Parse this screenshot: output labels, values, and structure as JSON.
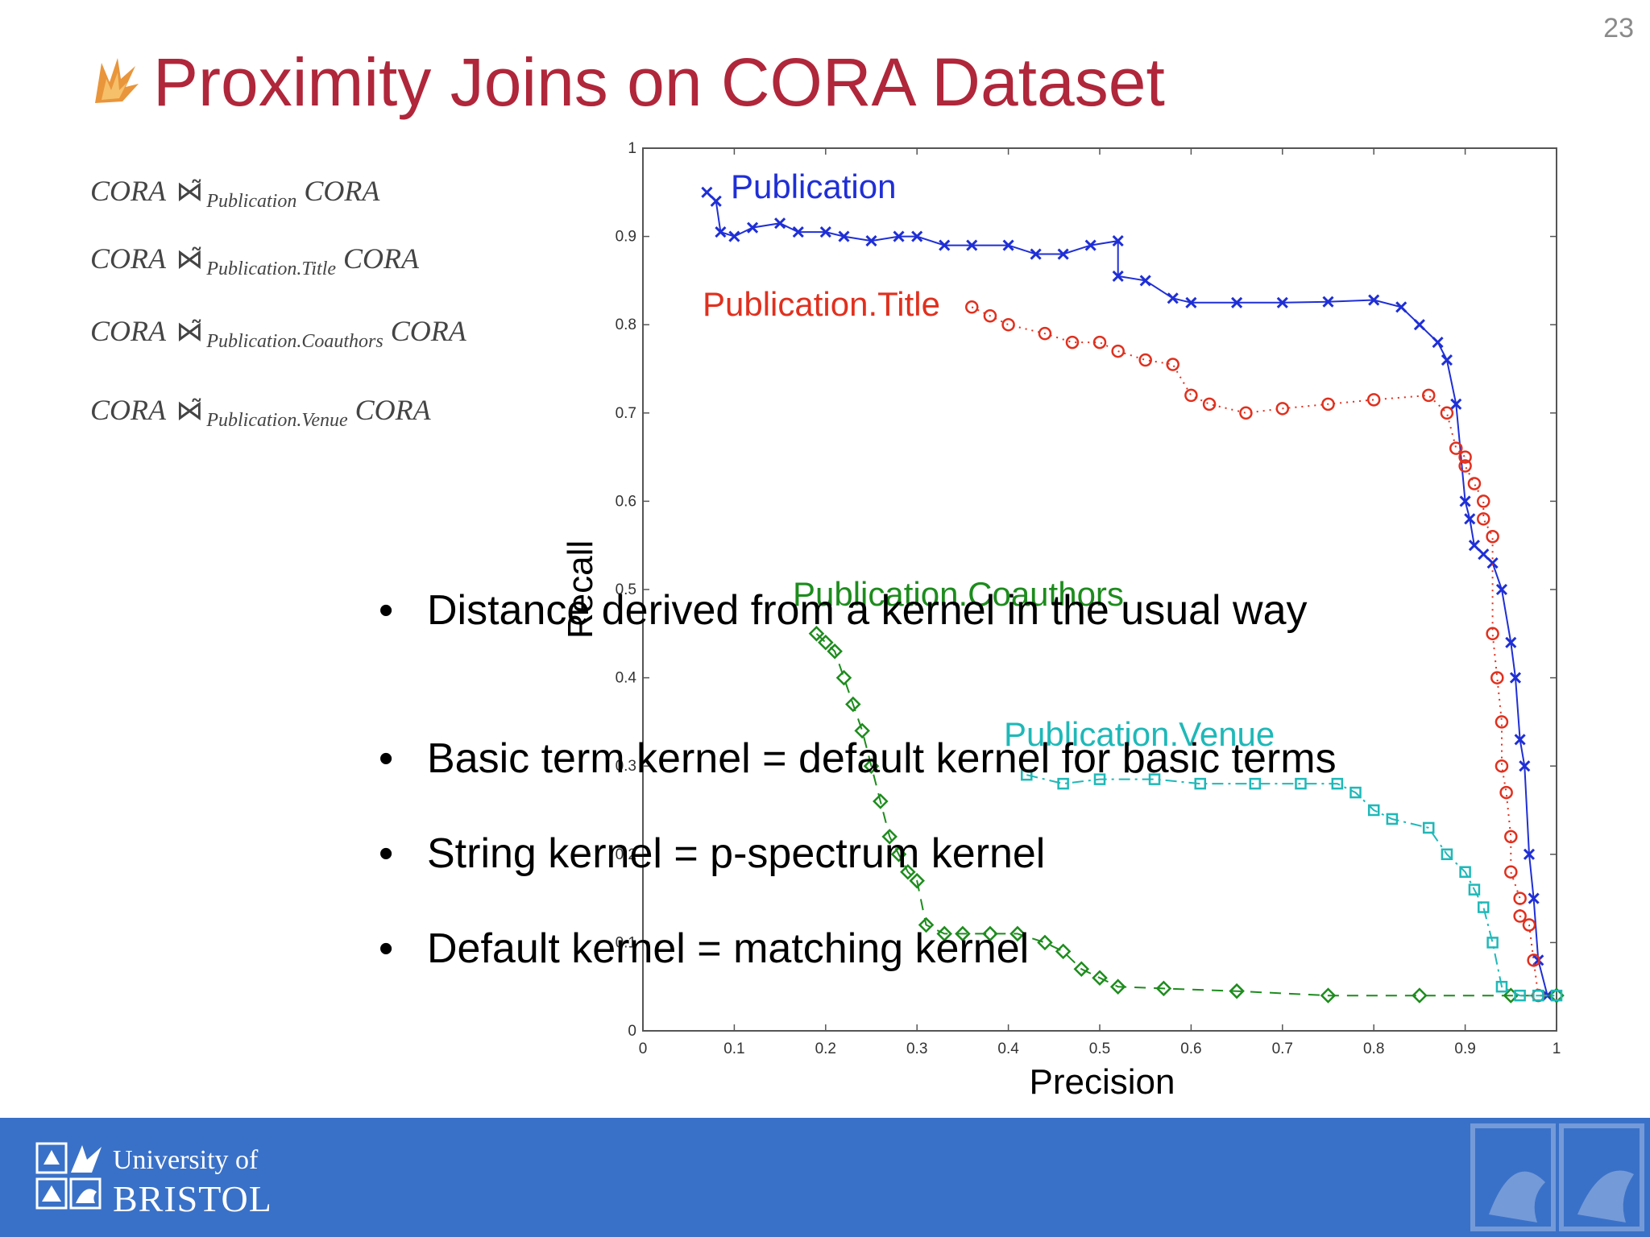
{
  "slide": {
    "page_number": "23",
    "title": "Proximity Joins on CORA Dataset",
    "icon": "flame-logo-icon",
    "accent_color": "#b0263a"
  },
  "formulas": [
    {
      "left": "CORA",
      "sub": "Publication",
      "right": "CORA"
    },
    {
      "left": "CORA",
      "sub": "Publication.Title",
      "right": "CORA"
    },
    {
      "left": "CORA",
      "sub": "Publication.Coauthors",
      "right": "CORA"
    },
    {
      "left": "CORA",
      "sub": "Publication.Venue",
      "right": "CORA"
    }
  ],
  "bullets": [
    "Distance derived from a kernel in the usual way",
    "Basic term kernel = default kernel for basic terms",
    "String kernel = p-spectrum kernel",
    "Default kernel = matching kernel"
  ],
  "footer": {
    "university_line1": "University of",
    "university_line2": "BRISTOL",
    "color": "#3a71c8"
  },
  "chart_data": {
    "type": "line",
    "xlabel": "Precision",
    "ylabel": "Recall",
    "xlim": [
      0,
      1
    ],
    "ylim": [
      0,
      1
    ],
    "x_ticks": [
      "0",
      "0.1",
      "0.2",
      "0.3",
      "0.4",
      "0.5",
      "0.6",
      "0.7",
      "0.8",
      "0.9",
      "1"
    ],
    "y_ticks": [
      "0",
      "0.1",
      "0.2",
      "0.3",
      "0.4",
      "0.5",
      "0.6",
      "0.7",
      "0.8",
      "0.9",
      "1"
    ],
    "series": [
      {
        "name": "Publication",
        "color": "#1f2fd6",
        "marker": "x",
        "line": "solid",
        "x": [
          0.07,
          0.08,
          0.085,
          0.1,
          0.12,
          0.15,
          0.17,
          0.2,
          0.22,
          0.25,
          0.28,
          0.3,
          0.33,
          0.36,
          0.4,
          0.43,
          0.46,
          0.49,
          0.52,
          0.52,
          0.55,
          0.58,
          0.6,
          0.65,
          0.7,
          0.75,
          0.8,
          0.83,
          0.85,
          0.87,
          0.88,
          0.89,
          0.9,
          0.905,
          0.91,
          0.92,
          0.93,
          0.94,
          0.95,
          0.955,
          0.96,
          0.965,
          0.97,
          0.975,
          0.98,
          0.99
        ],
        "y": [
          0.95,
          0.94,
          0.905,
          0.9,
          0.91,
          0.915,
          0.905,
          0.905,
          0.9,
          0.895,
          0.9,
          0.9,
          0.89,
          0.89,
          0.89,
          0.88,
          0.88,
          0.89,
          0.895,
          0.855,
          0.85,
          0.83,
          0.825,
          0.825,
          0.825,
          0.826,
          0.828,
          0.82,
          0.8,
          0.78,
          0.76,
          0.71,
          0.6,
          0.58,
          0.55,
          0.54,
          0.53,
          0.5,
          0.44,
          0.4,
          0.33,
          0.3,
          0.2,
          0.15,
          0.08,
          0.04
        ]
      },
      {
        "name": "Publication.Title",
        "color": "#e0301e",
        "marker": "o",
        "line": "dotted",
        "x": [
          0.36,
          0.38,
          0.4,
          0.44,
          0.47,
          0.5,
          0.52,
          0.55,
          0.58,
          0.6,
          0.62,
          0.66,
          0.7,
          0.75,
          0.8,
          0.86,
          0.88,
          0.89,
          0.9,
          0.9,
          0.91,
          0.92,
          0.92,
          0.93,
          0.93,
          0.935,
          0.94,
          0.94,
          0.945,
          0.95,
          0.95,
          0.96,
          0.96,
          0.97,
          0.975,
          0.98
        ],
        "y": [
          0.82,
          0.81,
          0.8,
          0.79,
          0.78,
          0.78,
          0.77,
          0.76,
          0.755,
          0.72,
          0.71,
          0.7,
          0.705,
          0.71,
          0.715,
          0.72,
          0.7,
          0.66,
          0.65,
          0.64,
          0.62,
          0.6,
          0.58,
          0.56,
          0.45,
          0.4,
          0.35,
          0.3,
          0.27,
          0.22,
          0.18,
          0.15,
          0.13,
          0.12,
          0.08,
          0.04
        ]
      },
      {
        "name": "Publication.Coauthors",
        "color": "#1d8c1d",
        "marker": "diamond",
        "line": "dashed",
        "x": [
          0.19,
          0.2,
          0.21,
          0.22,
          0.23,
          0.24,
          0.25,
          0.26,
          0.27,
          0.28,
          0.29,
          0.3,
          0.31,
          0.33,
          0.35,
          0.38,
          0.41,
          0.44,
          0.46,
          0.48,
          0.5,
          0.52,
          0.57,
          0.65,
          0.75,
          0.85,
          0.95,
          1.0
        ],
        "y": [
          0.45,
          0.44,
          0.43,
          0.4,
          0.37,
          0.34,
          0.3,
          0.26,
          0.22,
          0.2,
          0.18,
          0.17,
          0.12,
          0.11,
          0.11,
          0.11,
          0.11,
          0.1,
          0.09,
          0.07,
          0.06,
          0.05,
          0.048,
          0.045,
          0.04,
          0.04,
          0.04,
          0.04
        ]
      },
      {
        "name": "Publication.Venue",
        "color": "#1fb8b8",
        "marker": "square",
        "line": "dashdot",
        "x": [
          0.42,
          0.46,
          0.5,
          0.56,
          0.61,
          0.67,
          0.72,
          0.76,
          0.78,
          0.8,
          0.82,
          0.86,
          0.88,
          0.9,
          0.91,
          0.92,
          0.93,
          0.94,
          0.96,
          0.98,
          1.0
        ],
        "y": [
          0.29,
          0.28,
          0.285,
          0.285,
          0.28,
          0.28,
          0.28,
          0.28,
          0.27,
          0.25,
          0.24,
          0.23,
          0.2,
          0.18,
          0.16,
          0.14,
          0.1,
          0.05,
          0.04,
          0.04,
          0.04
        ]
      }
    ]
  }
}
